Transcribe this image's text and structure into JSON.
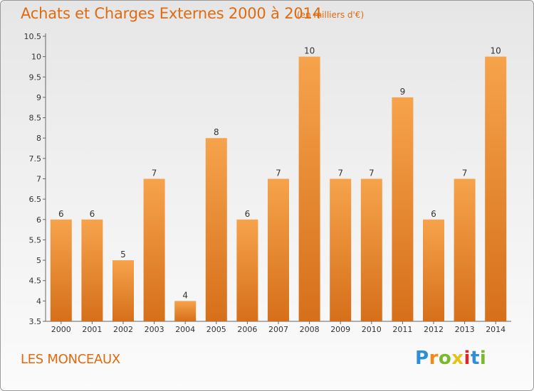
{
  "title": "Achats et Charges Externes 2000 à 2014",
  "subtitle": "(en milliers d'€)",
  "commune": "LES MONCEAUX",
  "logo": {
    "letters": [
      "P",
      "r",
      "o",
      "x",
      "i",
      "t",
      "i"
    ],
    "colors": [
      "#2e8fd6",
      "#f08a1c",
      "#7ab82e",
      "#e8c21a",
      "#d92a2a",
      "#2e8fd6",
      "#7ab82e"
    ]
  },
  "colors": {
    "bar_top": "#f6a34c",
    "bar_bottom": "#d66f1a",
    "accent": "#e06a10"
  },
  "chart_data": {
    "type": "bar",
    "categories": [
      "2000",
      "2001",
      "2002",
      "2003",
      "2004",
      "2005",
      "2006",
      "2007",
      "2008",
      "2009",
      "2010",
      "2011",
      "2012",
      "2013",
      "2014"
    ],
    "values": [
      6,
      6,
      5,
      7,
      4,
      8,
      6,
      7,
      10,
      7,
      7,
      9,
      6,
      7,
      10
    ],
    "data_labels": [
      "6",
      "6",
      "5",
      "7",
      "4",
      "8",
      "6",
      "7",
      "10",
      "7",
      "7",
      "9",
      "6",
      "7",
      "10"
    ],
    "ylim": [
      3.5,
      10.5
    ],
    "yticks": [
      "3.5",
      "4",
      "4.5",
      "5",
      "5.5",
      "6",
      "6.5",
      "7",
      "7.5",
      "8",
      "8.5",
      "9",
      "9.5",
      "10",
      "10.5"
    ],
    "grid": false,
    "legend": "none",
    "xlabel": "",
    "ylabel": ""
  }
}
